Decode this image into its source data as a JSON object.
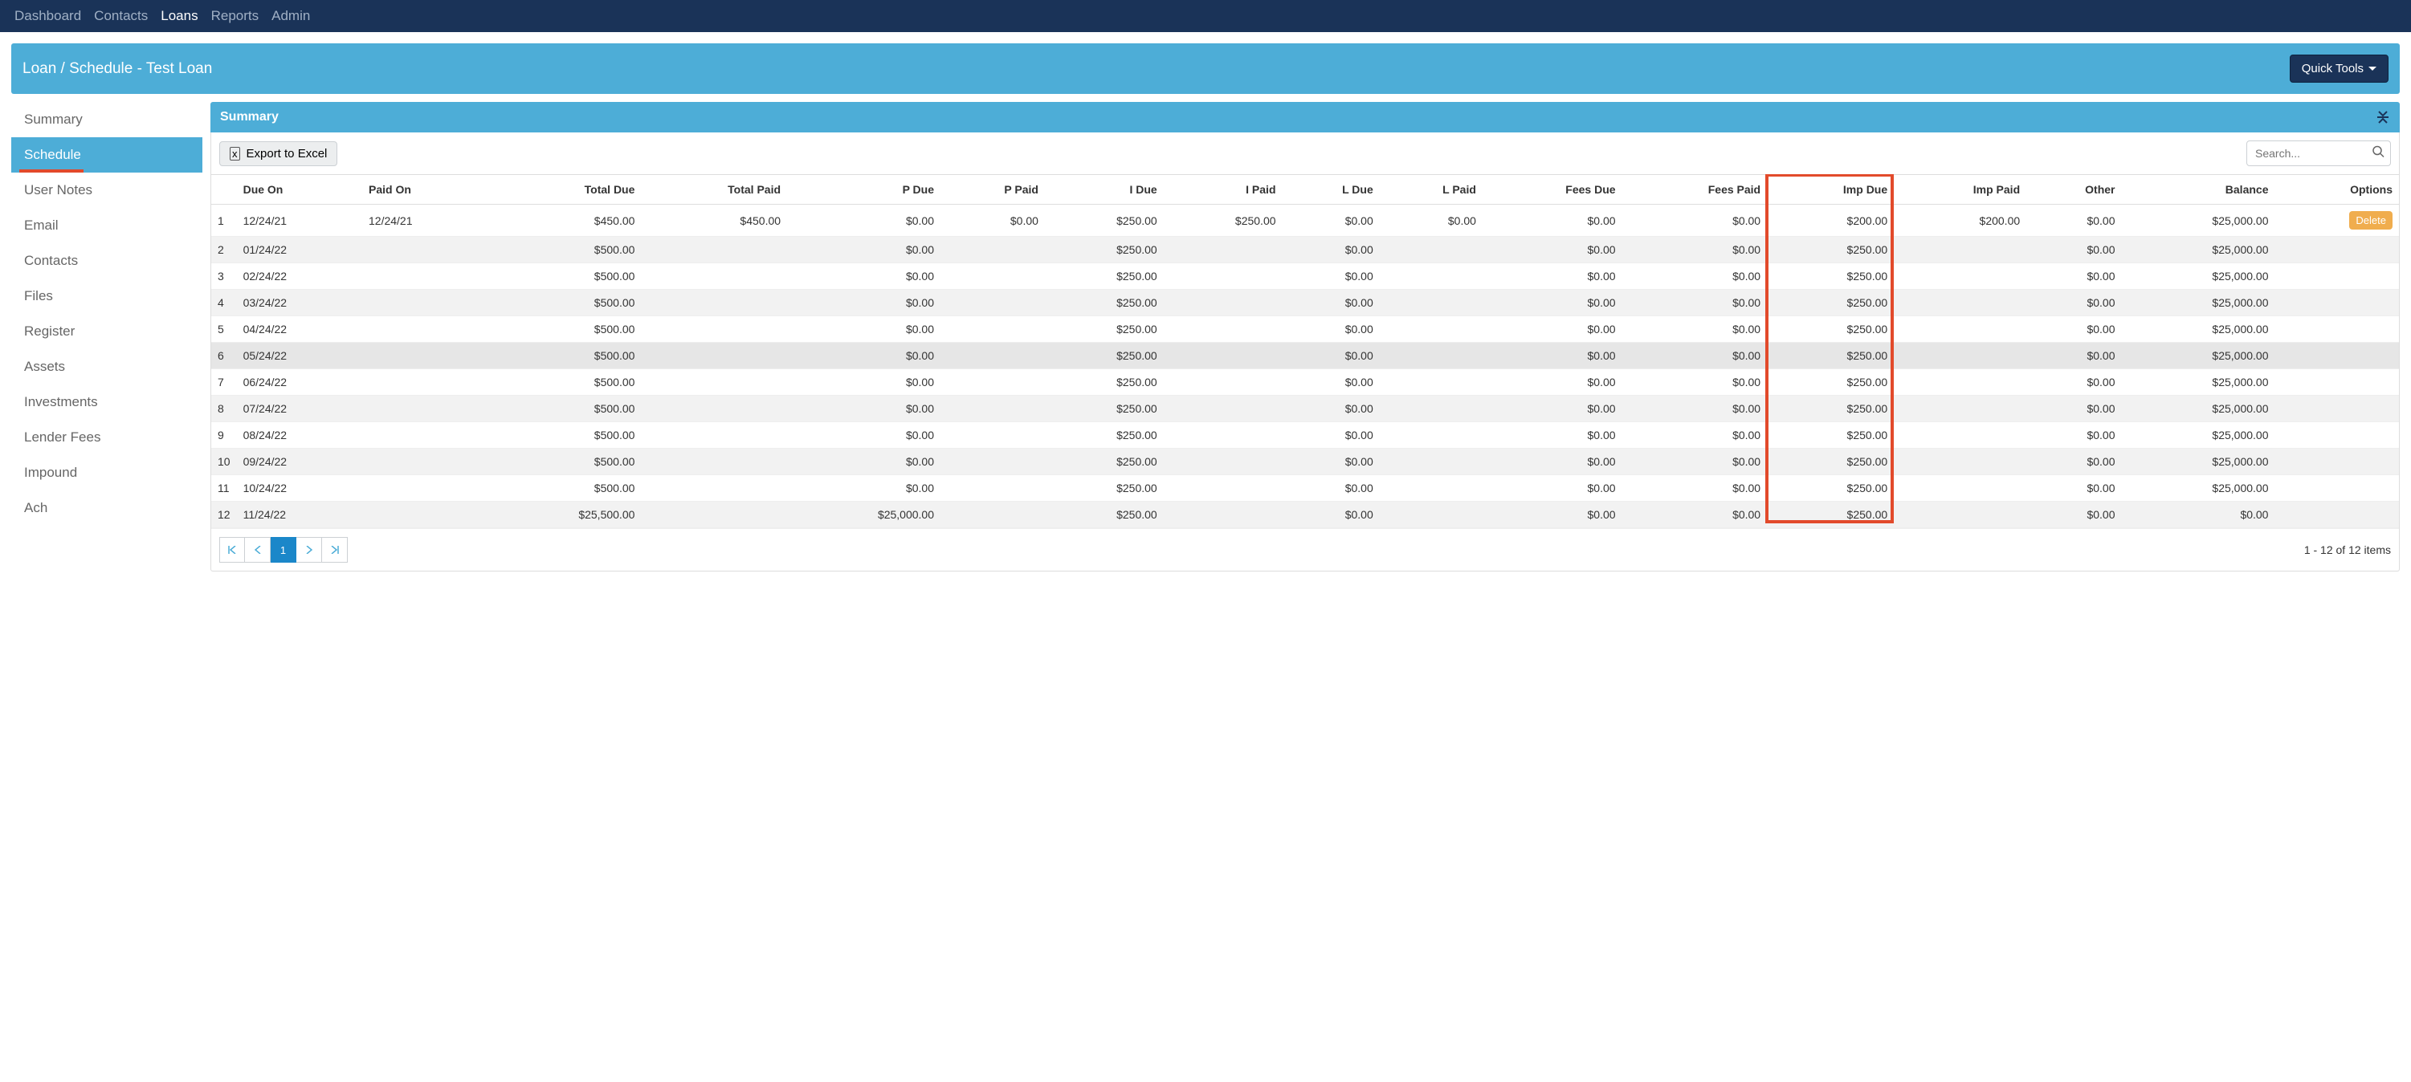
{
  "nav": {
    "items": [
      {
        "label": "Dashboard",
        "active": false
      },
      {
        "label": "Contacts",
        "active": false
      },
      {
        "label": "Loans",
        "active": true
      },
      {
        "label": "Reports",
        "active": false
      },
      {
        "label": "Admin",
        "active": false
      }
    ]
  },
  "title_bar": {
    "breadcrumb": "Loan / Schedule - Test Loan",
    "quick_tools_label": "Quick Tools"
  },
  "sidebar": {
    "items": [
      {
        "label": "Summary",
        "active": false
      },
      {
        "label": "Schedule",
        "active": true
      },
      {
        "label": "User Notes",
        "active": false
      },
      {
        "label": "Email",
        "active": false
      },
      {
        "label": "Contacts",
        "active": false
      },
      {
        "label": "Files",
        "active": false
      },
      {
        "label": "Register",
        "active": false
      },
      {
        "label": "Assets",
        "active": false
      },
      {
        "label": "Investments",
        "active": false
      },
      {
        "label": "Lender Fees",
        "active": false
      },
      {
        "label": "Impound",
        "active": false
      },
      {
        "label": "Ach",
        "active": false
      }
    ]
  },
  "panel": {
    "header_text": "Summary",
    "export_label": "Export to Excel",
    "search_placeholder": "Search...",
    "columns": [
      {
        "key": "idx",
        "label": "",
        "align": "left"
      },
      {
        "key": "due_on",
        "label": "Due On",
        "align": "left"
      },
      {
        "key": "paid_on",
        "label": "Paid On",
        "align": "left"
      },
      {
        "key": "total_due",
        "label": "Total Due",
        "align": "right"
      },
      {
        "key": "total_paid",
        "label": "Total Paid",
        "align": "right"
      },
      {
        "key": "p_due",
        "label": "P Due",
        "align": "right"
      },
      {
        "key": "p_paid",
        "label": "P Paid",
        "align": "right"
      },
      {
        "key": "i_due",
        "label": "I Due",
        "align": "right"
      },
      {
        "key": "i_paid",
        "label": "I Paid",
        "align": "right"
      },
      {
        "key": "l_due",
        "label": "L Due",
        "align": "right"
      },
      {
        "key": "l_paid",
        "label": "L Paid",
        "align": "right"
      },
      {
        "key": "fees_due",
        "label": "Fees Due",
        "align": "right"
      },
      {
        "key": "fees_paid",
        "label": "Fees Paid",
        "align": "right"
      },
      {
        "key": "imp_due",
        "label": "Imp Due",
        "align": "right",
        "highlight": true
      },
      {
        "key": "imp_paid",
        "label": "Imp Paid",
        "align": "right"
      },
      {
        "key": "other",
        "label": "Other",
        "align": "right"
      },
      {
        "key": "balance",
        "label": "Balance",
        "align": "right"
      },
      {
        "key": "options",
        "label": "Options",
        "align": "right"
      }
    ],
    "rows": [
      {
        "idx": "1",
        "due_on": "12/24/21",
        "paid_on": "12/24/21",
        "total_due": "$450.00",
        "total_paid": "$450.00",
        "p_due": "$0.00",
        "p_paid": "$0.00",
        "i_due": "$250.00",
        "i_paid": "$250.00",
        "l_due": "$0.00",
        "l_paid": "$0.00",
        "fees_due": "$0.00",
        "fees_paid": "$0.00",
        "imp_due": "$200.00",
        "imp_paid": "$200.00",
        "other": "$0.00",
        "balance": "$25,000.00",
        "options": "Delete"
      },
      {
        "idx": "2",
        "due_on": "01/24/22",
        "paid_on": "",
        "total_due": "$500.00",
        "total_paid": "",
        "p_due": "$0.00",
        "p_paid": "",
        "i_due": "$250.00",
        "i_paid": "",
        "l_due": "$0.00",
        "l_paid": "",
        "fees_due": "$0.00",
        "fees_paid": "$0.00",
        "imp_due": "$250.00",
        "imp_paid": "",
        "other": "$0.00",
        "balance": "$25,000.00",
        "options": ""
      },
      {
        "idx": "3",
        "due_on": "02/24/22",
        "paid_on": "",
        "total_due": "$500.00",
        "total_paid": "",
        "p_due": "$0.00",
        "p_paid": "",
        "i_due": "$250.00",
        "i_paid": "",
        "l_due": "$0.00",
        "l_paid": "",
        "fees_due": "$0.00",
        "fees_paid": "$0.00",
        "imp_due": "$250.00",
        "imp_paid": "",
        "other": "$0.00",
        "balance": "$25,000.00",
        "options": ""
      },
      {
        "idx": "4",
        "due_on": "03/24/22",
        "paid_on": "",
        "total_due": "$500.00",
        "total_paid": "",
        "p_due": "$0.00",
        "p_paid": "",
        "i_due": "$250.00",
        "i_paid": "",
        "l_due": "$0.00",
        "l_paid": "",
        "fees_due": "$0.00",
        "fees_paid": "$0.00",
        "imp_due": "$250.00",
        "imp_paid": "",
        "other": "$0.00",
        "balance": "$25,000.00",
        "options": ""
      },
      {
        "idx": "5",
        "due_on": "04/24/22",
        "paid_on": "",
        "total_due": "$500.00",
        "total_paid": "",
        "p_due": "$0.00",
        "p_paid": "",
        "i_due": "$250.00",
        "i_paid": "",
        "l_due": "$0.00",
        "l_paid": "",
        "fees_due": "$0.00",
        "fees_paid": "$0.00",
        "imp_due": "$250.00",
        "imp_paid": "",
        "other": "$0.00",
        "balance": "$25,000.00",
        "options": ""
      },
      {
        "idx": "6",
        "due_on": "05/24/22",
        "paid_on": "",
        "total_due": "$500.00",
        "total_paid": "",
        "p_due": "$0.00",
        "p_paid": "",
        "i_due": "$250.00",
        "i_paid": "",
        "l_due": "$0.00",
        "l_paid": "",
        "fees_due": "$0.00",
        "fees_paid": "$0.00",
        "imp_due": "$250.00",
        "imp_paid": "",
        "other": "$0.00",
        "balance": "$25,000.00",
        "options": "",
        "hover": true
      },
      {
        "idx": "7",
        "due_on": "06/24/22",
        "paid_on": "",
        "total_due": "$500.00",
        "total_paid": "",
        "p_due": "$0.00",
        "p_paid": "",
        "i_due": "$250.00",
        "i_paid": "",
        "l_due": "$0.00",
        "l_paid": "",
        "fees_due": "$0.00",
        "fees_paid": "$0.00",
        "imp_due": "$250.00",
        "imp_paid": "",
        "other": "$0.00",
        "balance": "$25,000.00",
        "options": ""
      },
      {
        "idx": "8",
        "due_on": "07/24/22",
        "paid_on": "",
        "total_due": "$500.00",
        "total_paid": "",
        "p_due": "$0.00",
        "p_paid": "",
        "i_due": "$250.00",
        "i_paid": "",
        "l_due": "$0.00",
        "l_paid": "",
        "fees_due": "$0.00",
        "fees_paid": "$0.00",
        "imp_due": "$250.00",
        "imp_paid": "",
        "other": "$0.00",
        "balance": "$25,000.00",
        "options": ""
      },
      {
        "idx": "9",
        "due_on": "08/24/22",
        "paid_on": "",
        "total_due": "$500.00",
        "total_paid": "",
        "p_due": "$0.00",
        "p_paid": "",
        "i_due": "$250.00",
        "i_paid": "",
        "l_due": "$0.00",
        "l_paid": "",
        "fees_due": "$0.00",
        "fees_paid": "$0.00",
        "imp_due": "$250.00",
        "imp_paid": "",
        "other": "$0.00",
        "balance": "$25,000.00",
        "options": ""
      },
      {
        "idx": "10",
        "due_on": "09/24/22",
        "paid_on": "",
        "total_due": "$500.00",
        "total_paid": "",
        "p_due": "$0.00",
        "p_paid": "",
        "i_due": "$250.00",
        "i_paid": "",
        "l_due": "$0.00",
        "l_paid": "",
        "fees_due": "$0.00",
        "fees_paid": "$0.00",
        "imp_due": "$250.00",
        "imp_paid": "",
        "other": "$0.00",
        "balance": "$25,000.00",
        "options": ""
      },
      {
        "idx": "11",
        "due_on": "10/24/22",
        "paid_on": "",
        "total_due": "$500.00",
        "total_paid": "",
        "p_due": "$0.00",
        "p_paid": "",
        "i_due": "$250.00",
        "i_paid": "",
        "l_due": "$0.00",
        "l_paid": "",
        "fees_due": "$0.00",
        "fees_paid": "$0.00",
        "imp_due": "$250.00",
        "imp_paid": "",
        "other": "$0.00",
        "balance": "$25,000.00",
        "options": ""
      },
      {
        "idx": "12",
        "due_on": "11/24/22",
        "paid_on": "",
        "total_due": "$25,500.00",
        "total_paid": "",
        "p_due": "$25,000.00",
        "p_paid": "",
        "i_due": "$250.00",
        "i_paid": "",
        "l_due": "$0.00",
        "l_paid": "",
        "fees_due": "$0.00",
        "fees_paid": "$0.00",
        "imp_due": "$250.00",
        "imp_paid": "",
        "other": "$0.00",
        "balance": "$0.00",
        "options": ""
      }
    ],
    "pager": {
      "current": "1",
      "info": "1 - 12 of 12 items"
    },
    "highlight_box": {
      "border_color": "#e24a2b",
      "border_width": 4
    }
  },
  "colors": {
    "navy": "#1a3358",
    "blue": "#4dadd7",
    "orange": "#e24a2b",
    "warning": "#f0ad4e"
  }
}
